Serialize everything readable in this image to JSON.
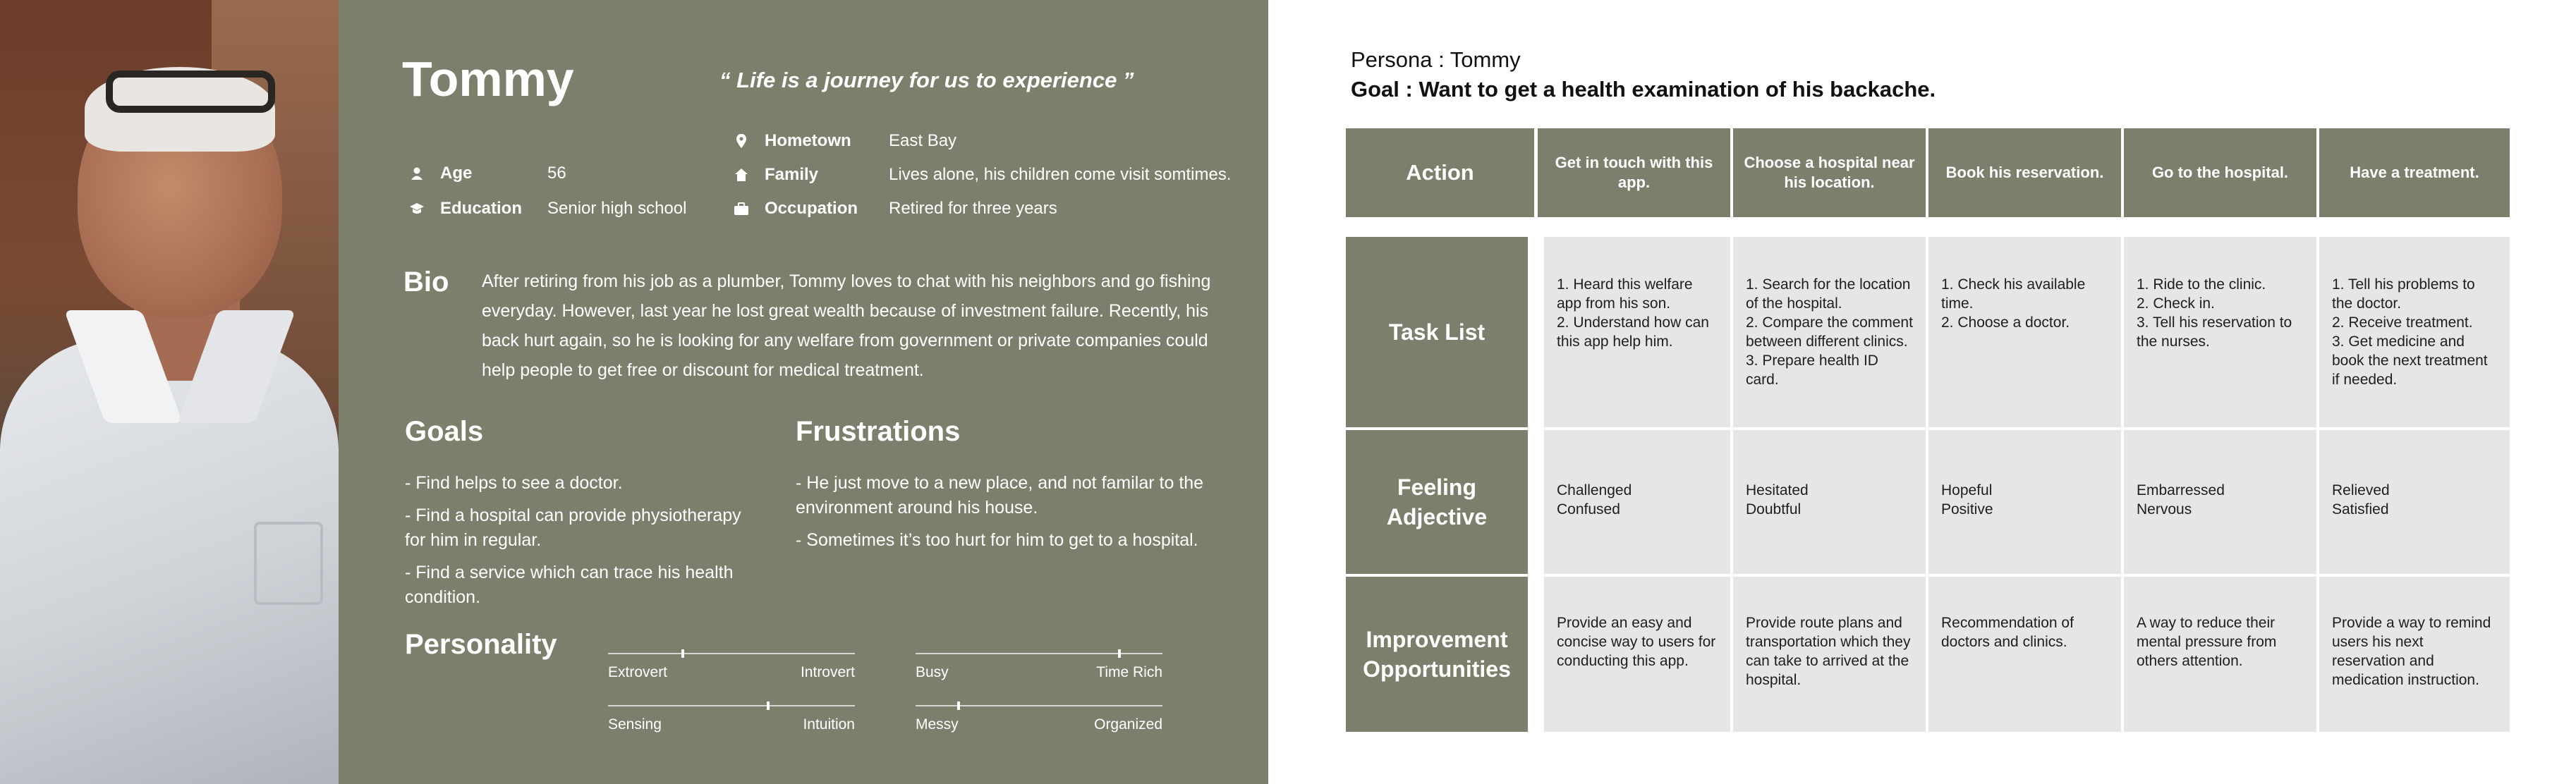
{
  "persona": {
    "name": "Tommy",
    "quote": "“ Life is a journey for us to experience ”",
    "age_label": "Age",
    "age": "56",
    "education_label": "Education",
    "education": "Senior high school",
    "hometown_label": "Hometown",
    "hometown": "East Bay",
    "family_label": "Family",
    "family": "Lives alone, his children come visit somtimes.",
    "occupation_label": "Occupation",
    "occupation": "Retired for three years",
    "bio_title": "Bio",
    "bio": "After retiring from his job as a plumber, Tommy loves to chat with his neighbors and go fishing everyday. However, last year he lost great wealth because of investment failure. Recently, his back hurt again, so he is looking for any welfare from government or private companies could help people to get free or discount for medical treatment.",
    "goals_title": "Goals",
    "goals": [
      "- Find helps to see a doctor.",
      "- Find a hospital can provide physiotherapy for him in regular.",
      "- Find a service which can trace his health condition."
    ],
    "frustrations_title": "Frustrations",
    "frustrations": [
      "- He just move to a new place, and not familar to the environment around his house.",
      "- Sometimes it’s too hurt for him to get to a hospital."
    ],
    "personality_title": "Personality",
    "personality": [
      {
        "left": "Extrovert",
        "right": "Introvert",
        "value": 0.3
      },
      {
        "left": "Busy",
        "right": "Time Rich",
        "value": 0.83
      },
      {
        "left": "Sensing",
        "right": "Intuition",
        "value": 0.65
      },
      {
        "left": "Messy",
        "right": "Organized",
        "value": 0.17
      }
    ]
  },
  "journey": {
    "persona_line": "Persona : Tommy",
    "goal_line": "Goal : Want to get a health examination of his backache.",
    "action_label": "Action",
    "actions": [
      "Get in touch with this app.",
      "Choose a hospital near his location.",
      "Book his reservation.",
      "Go to the hospital.",
      "Have a treatment."
    ],
    "row_labels": {
      "task_list": "Task List",
      "feeling": "Feeling Adjective",
      "improvement": "Improvement Opportunities"
    },
    "tasks": [
      "1. Heard this welfare app from his son.\n2. Understand how can this app help him.",
      "1. Search for the location of the hospital.\n2. Compare the comment between different clinics.\n3. Prepare health ID card.",
      "1. Check his available time.\n2. Choose a doctor.",
      "1. Ride to the clinic.\n2. Check in.\n3. Tell his reservation to the nurses.",
      "1. Tell his problems to the doctor.\n2. Receive treatment.\n3. Get medicine and book the next treatment if needed."
    ],
    "feelings": [
      "Challenged\nConfused",
      "Hesitated\nDoubtful",
      "Hopeful\nPositive",
      "Embarressed\nNervous",
      "Relieved\nSatisfied"
    ],
    "improvements": [
      "Provide an easy and concise way to users for conducting this app.",
      "Provide route plans and transportation which they can take to arrived at the hospital.",
      "Recommendation of doctors and clinics.",
      "A way to reduce their mental pressure from others attention.",
      "Provide a way to remind users his next reservation and medication instruction."
    ]
  },
  "colors": {
    "card": "#7e7e6d",
    "cell": "#e6e6e6"
  },
  "icons": {
    "age": "person-icon",
    "education": "graduation-cap-icon",
    "hometown": "map-pin-icon",
    "family": "house-icon",
    "occupation": "briefcase-icon"
  }
}
